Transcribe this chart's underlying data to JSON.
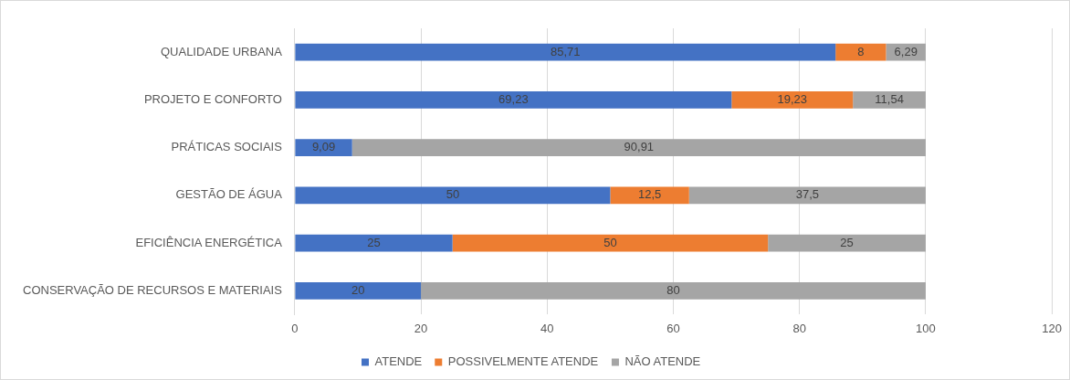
{
  "chart_data": {
    "type": "bar",
    "orientation": "horizontal",
    "stacked": true,
    "categories": [
      "QUALIDADE URBANA",
      "PROJETO E CONFORTO",
      "PRÁTICAS SOCIAIS",
      "GESTÃO DE ÁGUA",
      "EFICIÊNCIA ENERGÉTICA",
      "CONSERVAÇÃO DE RECURSOS E MATERIAIS"
    ],
    "series": [
      {
        "name": "ATENDE",
        "color": "#4472c4",
        "values": [
          85.71,
          69.23,
          9.09,
          50,
          25,
          20
        ],
        "value_labels": [
          "85,71",
          "69,23",
          "9,09",
          "50",
          "25",
          "20"
        ]
      },
      {
        "name": "POSSIVELMENTE ATENDE",
        "color": "#ed7d31",
        "values": [
          8,
          19.23,
          null,
          12.5,
          50,
          null
        ],
        "value_labels": [
          "8",
          "19,23",
          null,
          "12,5",
          "50",
          null
        ]
      },
      {
        "name": "NÃO ATENDE",
        "color": "#a5a5a5",
        "values": [
          6.29,
          11.54,
          90.91,
          37.5,
          25,
          80
        ],
        "value_labels": [
          "6,29",
          "11,54",
          "90,91",
          "37,5",
          "25",
          "80"
        ]
      }
    ],
    "xlim": [
      0,
      120
    ],
    "xticks": [
      0,
      20,
      40,
      60,
      80,
      100,
      120
    ],
    "grid": "x",
    "legend": "bottom"
  }
}
